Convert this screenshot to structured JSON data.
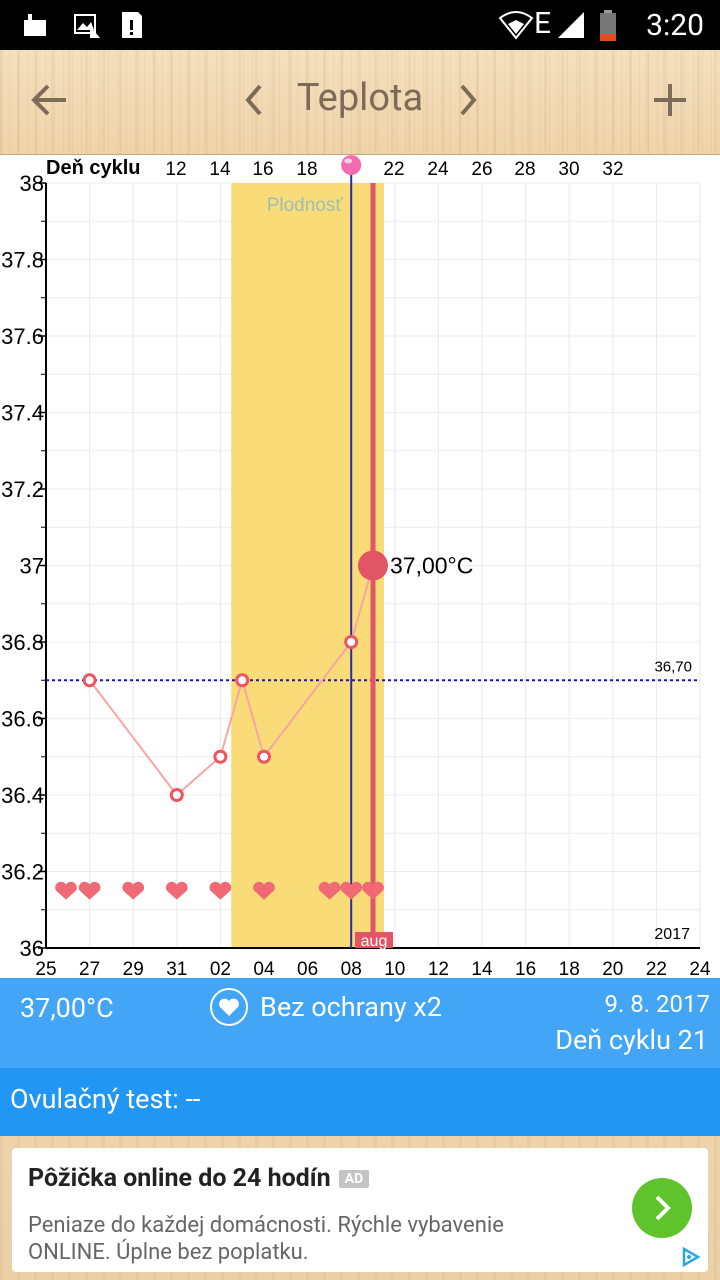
{
  "status_bar": {
    "time": "3:20",
    "network": "E"
  },
  "toolbar": {
    "title": "Teplota"
  },
  "chart_data": {
    "type": "line",
    "title": "Teplota",
    "top_axis_label": "Deň cyklu",
    "top_ticks": [
      "12",
      "14",
      "16",
      "18",
      "22",
      "24",
      "26",
      "28",
      "30",
      "32"
    ],
    "x_labels": [
      "25",
      "27",
      "29",
      "31",
      "02",
      "04",
      "06",
      "08",
      "10",
      "12",
      "14",
      "16",
      "18",
      "20",
      "22",
      "24"
    ],
    "y_ticks": [
      "38",
      "37.8",
      "37.6",
      "37.4",
      "37.2",
      "37",
      "36.8",
      "36.6",
      "36.4",
      "36.2",
      "36"
    ],
    "ylim": [
      36,
      38
    ],
    "series": [
      {
        "values": [
          36.7,
          36.4,
          36.5,
          36.7,
          36.5,
          36.8,
          37.0
        ]
      }
    ],
    "point_days": [
      "27",
      "31",
      "02",
      "03",
      "04",
      "08",
      "09"
    ],
    "fertility_label": "Plodnosť",
    "fertility_window": [
      "03",
      "09"
    ],
    "coverline_label": "36,70",
    "coverline_value": 36.7,
    "current_value_label": "37,00°C",
    "month_label": "aug",
    "year_label": "2017",
    "grid": true,
    "colors": {
      "series": "#f28c8c",
      "highlight": "#e25565",
      "fertility": "#f9dc77",
      "coverline": "#1a1aa0",
      "ovulation_line": "#2c2ca8"
    }
  },
  "info": {
    "temperature": "37,00°C",
    "intercourse": "Bez ochrany x2",
    "date": "9. 8. 2017",
    "cycle_day": "Deň cyklu 21"
  },
  "ovulation_test": {
    "label": "Ovulačný test: --"
  },
  "ad": {
    "headline": "Pôžička online do 24 hodín",
    "badge": "AD",
    "description": "Peniaze do každej domácnosti. Rýchle vybavenie ONLINE. Úplne bez poplatku."
  }
}
